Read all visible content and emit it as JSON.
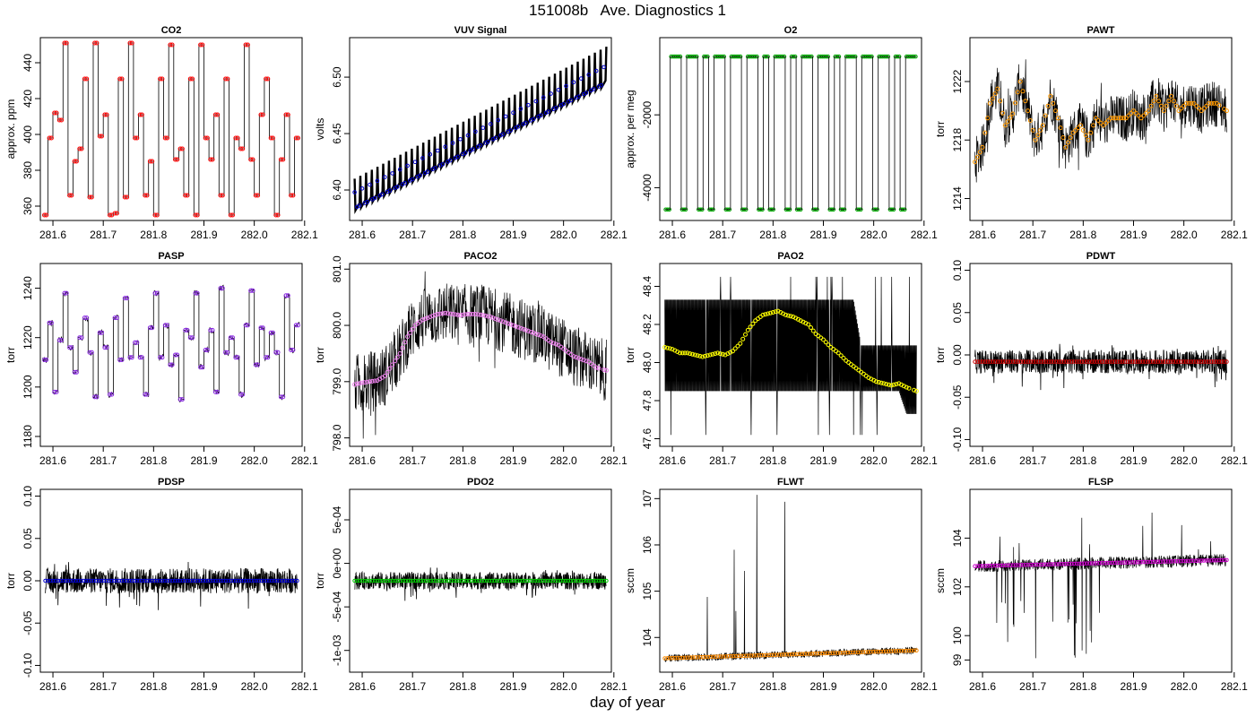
{
  "figure": {
    "title": "151008b   Ave. Diagnostics 1",
    "xlabel": "day of year"
  },
  "chart_data": [
    {
      "id": "co2",
      "type": "line",
      "title": "CO2",
      "ylabel": "approx. ppm",
      "xlim": [
        281.575,
        282.095
      ],
      "ylim": [
        352,
        454
      ],
      "yticks": [
        {
          "v": 360,
          "t": "360"
        },
        {
          "v": 380,
          "t": "380"
        },
        {
          "v": 400,
          "t": "400"
        },
        {
          "v": 420,
          "t": "420"
        },
        {
          "v": 440,
          "t": "440"
        }
      ],
      "xticks": [
        "281.6",
        "281.7",
        "281.8",
        "281.9",
        "282.0",
        "282.1"
      ],
      "points_color": "#ff0000",
      "series": "CO2 trace",
      "noise": 0,
      "mode": "steps",
      "x": [
        281.585,
        281.595,
        281.605,
        281.615,
        281.625,
        281.635,
        281.645,
        281.655,
        281.665,
        281.675,
        281.685,
        281.695,
        281.705,
        281.715,
        281.725,
        281.735,
        281.745,
        281.755,
        281.765,
        281.775,
        281.785,
        281.795,
        281.805,
        281.815,
        281.825,
        281.835,
        281.845,
        281.855,
        281.865,
        281.875,
        281.885,
        281.895,
        281.905,
        281.915,
        281.925,
        281.935,
        281.945,
        281.955,
        281.965,
        281.975,
        281.985,
        281.995,
        282.005,
        282.015,
        282.025,
        282.035,
        282.045,
        282.055,
        282.065,
        282.075,
        282.085
      ],
      "y": [
        355,
        398,
        412,
        408,
        451,
        366,
        385,
        392,
        431,
        365,
        451,
        399,
        411,
        355,
        356,
        431,
        365,
        451,
        398,
        411,
        366,
        385,
        355,
        431,
        398,
        450,
        386,
        392,
        366,
        431,
        355,
        450,
        398,
        386,
        411,
        366,
        431,
        355,
        398,
        392,
        450,
        386,
        366,
        411,
        431,
        398,
        355,
        386,
        411,
        366,
        398
      ]
    },
    {
      "id": "vuv",
      "type": "line",
      "title": "VUV Signal",
      "ylabel": "volts",
      "xlim": [
        281.575,
        282.095
      ],
      "ylim": [
        6.373,
        6.535
      ],
      "yticks": [
        {
          "v": 6.4,
          "t": "6.40"
        },
        {
          "v": 6.45,
          "t": "6.45"
        },
        {
          "v": 6.5,
          "t": "6.50"
        }
      ],
      "xticks": [
        "281.6",
        "281.7",
        "281.8",
        "281.9",
        "282.0",
        "282.1"
      ],
      "points_color": "#0000cc",
      "mode": "sawtooth",
      "noise": 0,
      "x": [
        281.585,
        282.085
      ],
      "y": [
        6.382,
        6.493
      ],
      "spike_top": [
        6.41,
        6.527
      ],
      "dense_top": [
        6.398,
        6.51
      ]
    },
    {
      "id": "o2",
      "type": "line",
      "title": "O2",
      "ylabel": "approx. per meg",
      "xlim": [
        281.575,
        282.095
      ],
      "ylim": [
        -4900,
        120
      ],
      "yticks": [
        {
          "v": -4000,
          "t": "-4000"
        },
        {
          "v": -2000,
          "t": "-2000"
        }
      ],
      "xticks": [
        "281.6",
        "281.7",
        "281.8",
        "281.9",
        "282.0",
        "282.1"
      ],
      "points_color": "#00aa00",
      "mode": "o2",
      "noise": 0,
      "high": -400,
      "low": -4600
    },
    {
      "id": "pawt",
      "type": "line",
      "title": "PAWT",
      "ylabel": "torr",
      "xlim": [
        281.575,
        282.095
      ],
      "ylim": [
        1212.5,
        1225
      ],
      "yticks": [
        {
          "v": 1214,
          "t": "1214"
        },
        {
          "v": 1218,
          "t": "1218"
        },
        {
          "v": 1222,
          "t": "1222"
        }
      ],
      "xticks": [
        "281.6",
        "281.7",
        "281.8",
        "281.9",
        "282.0",
        "282.1"
      ],
      "points_color": "#ff9900",
      "mode": "noisy",
      "noise": 1.6,
      "x": [
        281.585,
        281.6,
        281.615,
        281.63,
        281.645,
        281.66,
        281.675,
        281.69,
        281.705,
        281.72,
        281.735,
        281.75,
        281.765,
        281.78,
        281.795,
        281.81,
        281.825,
        281.84,
        281.855,
        281.87,
        281.885,
        281.9,
        281.915,
        281.93,
        281.945,
        281.96,
        281.975,
        281.99,
        282.005,
        282.02,
        282.035,
        282.05,
        282.065,
        282.085
      ],
      "y": [
        1216.5,
        1217.5,
        1220.5,
        1221.5,
        1219.0,
        1219.8,
        1222.0,
        1220.0,
        1218.0,
        1219.0,
        1221.0,
        1219.5,
        1217.5,
        1218.5,
        1219.0,
        1218.0,
        1219.5,
        1219.0,
        1219.5,
        1219.5,
        1219.5,
        1220.0,
        1219.5,
        1220.0,
        1221.0,
        1220.0,
        1221.0,
        1220.0,
        1220.5,
        1220.5,
        1220.0,
        1220.5,
        1220.5,
        1220.0
      ]
    },
    {
      "id": "pasp",
      "type": "line",
      "title": "PASP",
      "ylabel": "torr",
      "xlim": [
        281.575,
        282.095
      ],
      "ylim": [
        1176,
        1250
      ],
      "yticks": [
        {
          "v": 1180,
          "t": "1180"
        },
        {
          "v": 1200,
          "t": "1200"
        },
        {
          "v": 1220,
          "t": "1220"
        },
        {
          "v": 1240,
          "t": "1240"
        }
      ],
      "xticks": [
        "281.6",
        "281.7",
        "281.8",
        "281.9",
        "282.0",
        "282.1"
      ],
      "points_color": "#8a2be2",
      "mode": "steps",
      "noise": 1.2,
      "x": [
        281.585,
        281.595,
        281.605,
        281.615,
        281.625,
        281.635,
        281.645,
        281.655,
        281.665,
        281.675,
        281.685,
        281.695,
        281.705,
        281.715,
        281.725,
        281.735,
        281.745,
        281.755,
        281.765,
        281.775,
        281.785,
        281.795,
        281.805,
        281.815,
        281.825,
        281.835,
        281.845,
        281.855,
        281.865,
        281.875,
        281.885,
        281.895,
        281.905,
        281.915,
        281.925,
        281.935,
        281.945,
        281.955,
        281.965,
        281.975,
        281.985,
        281.995,
        282.005,
        282.015,
        282.025,
        282.035,
        282.045,
        282.055,
        282.065,
        282.075,
        282.085
      ],
      "y": [
        1211,
        1226,
        1198,
        1219,
        1238,
        1216,
        1206,
        1220,
        1228,
        1214,
        1196,
        1222,
        1216,
        1197,
        1228,
        1211,
        1236,
        1212,
        1218,
        1212,
        1197,
        1224,
        1238,
        1212,
        1225,
        1209,
        1213,
        1195,
        1223,
        1220,
        1238,
        1208,
        1215,
        1223,
        1198,
        1240,
        1214,
        1220,
        1212,
        1197,
        1225,
        1239,
        1209,
        1224,
        1212,
        1222,
        1214,
        1196,
        1237,
        1215,
        1225
      ]
    },
    {
      "id": "paco2",
      "type": "line",
      "title": "PACO2",
      "ylabel": "torr",
      "xlim": [
        281.575,
        282.095
      ],
      "ylim": [
        797.85,
        801.1
      ],
      "yticks": [
        {
          "v": 798.0,
          "t": "798.0"
        },
        {
          "v": 799.0,
          "t": "799.0"
        },
        {
          "v": 800.0,
          "t": "800.0"
        },
        {
          "v": 801.0,
          "t": "801.0"
        }
      ],
      "xticks": [
        "281.6",
        "281.7",
        "281.8",
        "281.9",
        "282.0",
        "282.1"
      ],
      "points_color": "#ee82ee",
      "mode": "noisy",
      "noise": 0.55,
      "x": [
        281.585,
        281.6,
        281.615,
        281.63,
        281.645,
        281.66,
        281.675,
        281.69,
        281.705,
        281.72,
        281.735,
        281.75,
        281.765,
        281.78,
        281.795,
        281.81,
        281.825,
        281.84,
        281.855,
        281.87,
        281.885,
        281.9,
        281.915,
        281.93,
        281.945,
        281.96,
        281.975,
        281.99,
        282.005,
        282.02,
        282.035,
        282.05,
        282.065,
        282.085
      ],
      "y": [
        798.95,
        798.98,
        799.0,
        799.02,
        799.1,
        799.3,
        799.5,
        799.8,
        800.0,
        800.1,
        800.15,
        800.2,
        800.22,
        800.2,
        800.18,
        800.2,
        800.2,
        800.18,
        800.15,
        800.1,
        800.05,
        800.0,
        799.95,
        799.9,
        799.85,
        799.8,
        799.7,
        799.65,
        799.55,
        799.45,
        799.4,
        799.35,
        799.25,
        799.2
      ]
    },
    {
      "id": "pao2",
      "type": "line",
      "title": "PAO2",
      "ylabel": "torr",
      "xlim": [
        281.575,
        282.095
      ],
      "ylim": [
        47.56,
        48.52
      ],
      "yticks": [
        {
          "v": 47.6,
          "t": "47.6"
        },
        {
          "v": 47.8,
          "t": "47.8"
        },
        {
          "v": 48.0,
          "t": "48.0"
        },
        {
          "v": 48.2,
          "t": "48.2"
        },
        {
          "v": 48.4,
          "t": "48.4"
        }
      ],
      "xticks": [
        "281.6",
        "281.7",
        "281.8",
        "281.9",
        "282.0",
        "282.1"
      ],
      "points_color": "#ffff00",
      "mode": "band",
      "noise": 0,
      "x": [
        281.585,
        281.6,
        281.615,
        281.63,
        281.645,
        281.66,
        281.675,
        281.69,
        281.705,
        281.72,
        281.735,
        281.75,
        281.765,
        281.78,
        281.795,
        281.81,
        281.825,
        281.84,
        281.855,
        281.87,
        281.885,
        281.9,
        281.915,
        281.93,
        281.945,
        281.96,
        281.975,
        281.99,
        282.005,
        282.02,
        282.035,
        282.05,
        282.065,
        282.085
      ],
      "y": [
        48.08,
        48.07,
        48.05,
        48.05,
        48.04,
        48.03,
        48.04,
        48.05,
        48.04,
        48.06,
        48.1,
        48.17,
        48.22,
        48.25,
        48.26,
        48.27,
        48.25,
        48.24,
        48.22,
        48.2,
        48.15,
        48.12,
        48.08,
        48.05,
        48.01,
        47.98,
        47.95,
        47.92,
        47.9,
        47.89,
        47.88,
        47.89,
        47.87,
        47.85
      ],
      "band_top": [
        48.33,
        48.33,
        48.33,
        48.33,
        48.33,
        48.33,
        48.33,
        48.33,
        48.33,
        48.33,
        48.33,
        48.33,
        48.33,
        48.33,
        48.33,
        48.33,
        48.33,
        48.33,
        48.33,
        48.33,
        48.33,
        48.33,
        48.33,
        48.33,
        48.33,
        48.33,
        48.09,
        48.09,
        48.09,
        48.09,
        48.09,
        48.09,
        48.09,
        48.09
      ],
      "band_bot": [
        47.85,
        47.85,
        47.85,
        47.85,
        47.85,
        47.85,
        47.85,
        47.85,
        47.85,
        47.85,
        47.85,
        47.85,
        47.85,
        47.85,
        47.85,
        47.85,
        47.85,
        47.85,
        47.85,
        47.85,
        47.85,
        47.85,
        47.85,
        47.85,
        47.85,
        47.85,
        47.85,
        47.85,
        47.85,
        47.85,
        47.85,
        47.85,
        47.73,
        47.73
      ]
    },
    {
      "id": "pdwt",
      "type": "line",
      "title": "PDWT",
      "ylabel": "torr",
      "xlim": [
        281.575,
        282.095
      ],
      "ylim": [
        -0.108,
        0.108
      ],
      "yticks": [
        {
          "v": -0.1,
          "t": "-0.10"
        },
        {
          "v": -0.05,
          "t": "-0.05"
        },
        {
          "v": 0.0,
          "t": "0.00"
        },
        {
          "v": 0.05,
          "t": "0.05"
        },
        {
          "v": 0.1,
          "t": "0.10"
        }
      ],
      "xticks": [
        "281.6",
        "281.7",
        "281.8",
        "281.9",
        "282.0",
        "282.1"
      ],
      "points_color": "#cc0000",
      "mode": "flat",
      "noise": 0.014,
      "level": -0.008
    },
    {
      "id": "pdsp",
      "type": "line",
      "title": "PDSP",
      "ylabel": "torr",
      "xlim": [
        281.575,
        282.095
      ],
      "ylim": [
        -0.108,
        0.108
      ],
      "yticks": [
        {
          "v": -0.1,
          "t": "-0.10"
        },
        {
          "v": -0.05,
          "t": "-0.05"
        },
        {
          "v": 0.0,
          "t": "0.00"
        },
        {
          "v": 0.05,
          "t": "0.05"
        },
        {
          "v": 0.1,
          "t": "0.10"
        }
      ],
      "xticks": [
        "281.6",
        "281.7",
        "281.8",
        "281.9",
        "282.0",
        "282.1"
      ],
      "points_color": "#0000cc",
      "mode": "flat",
      "noise": 0.015,
      "level": 0.0
    },
    {
      "id": "pdo2",
      "type": "line",
      "title": "PDO2",
      "ylabel": "torr",
      "xlim": [
        281.575,
        282.095
      ],
      "ylim": [
        -0.00125,
        0.00085
      ],
      "yticks": [
        {
          "v": -0.001,
          "t": "-1e-03"
        },
        {
          "v": -0.0005,
          "t": "-5e-04"
        },
        {
          "v": 0.0,
          "t": "0e+00"
        },
        {
          "v": 0.0005,
          "t": "5e-04"
        }
      ],
      "xticks": [
        "281.6",
        "281.7",
        "281.8",
        "281.9",
        "282.0",
        "282.1"
      ],
      "points_color": "#00cc00",
      "mode": "flat",
      "noise": 0.0001,
      "level": -0.0002
    },
    {
      "id": "flwt",
      "type": "line",
      "title": "FLWT",
      "ylabel": "sccm",
      "xlim": [
        281.575,
        282.095
      ],
      "ylim": [
        103.25,
        107.2
      ],
      "yticks": [
        {
          "v": 104,
          "t": "104"
        },
        {
          "v": 105,
          "t": "105"
        },
        {
          "v": 106,
          "t": "106"
        },
        {
          "v": 107,
          "t": "107"
        }
      ],
      "xticks": [
        "281.6",
        "281.7",
        "281.8",
        "281.9",
        "282.0",
        "282.1"
      ],
      "points_color": "#ff8c00",
      "mode": "spikes_up",
      "noise": 0.08,
      "x": [
        281.585,
        282.085
      ],
      "y": [
        103.55,
        103.72
      ],
      "spike_max": 107.1,
      "spike_until": 281.83
    },
    {
      "id": "flsp",
      "type": "line",
      "title": "FLSP",
      "ylabel": "sccm",
      "xlim": [
        281.575,
        282.095
      ],
      "ylim": [
        98.5,
        106
      ],
      "yticks": [
        {
          "v": 99,
          "t": "99"
        },
        {
          "v": 100,
          "t": "100"
        },
        {
          "v": 102,
          "t": "102"
        },
        {
          "v": 104,
          "t": "104"
        }
      ],
      "xticks": [
        "281.6",
        "281.7",
        "281.8",
        "281.9",
        "282.0",
        "282.1"
      ],
      "points_color": "#cc00cc",
      "mode": "spikes_down",
      "noise": 0.25,
      "x": [
        281.585,
        282.085
      ],
      "y": [
        102.85,
        103.1
      ],
      "spike_min": 99.0
    }
  ]
}
